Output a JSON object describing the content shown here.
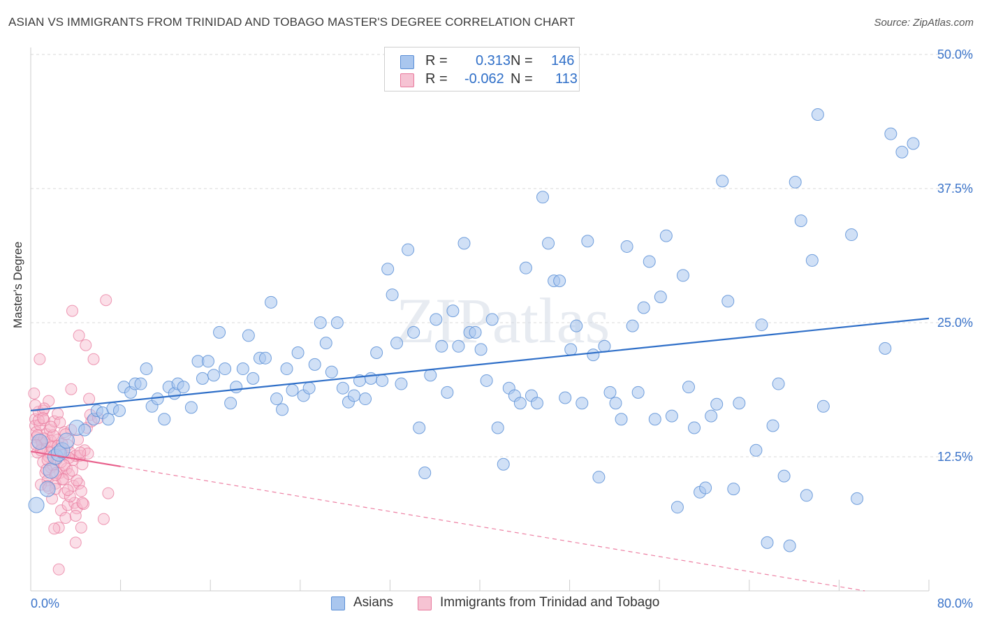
{
  "header": {
    "title": "ASIAN VS IMMIGRANTS FROM TRINIDAD AND TOBAGO MASTER'S DEGREE CORRELATION CHART",
    "source": "Source: ZipAtlas.com"
  },
  "watermark": "ZIPatlas",
  "legend": {
    "rows": [
      {
        "r_label": "R =",
        "r_value": "0.313",
        "n_label": "N =",
        "n_value": "146"
      },
      {
        "r_label": "R =",
        "r_value": "-0.062",
        "n_label": "N =",
        "n_value": "113"
      }
    ],
    "bottom": [
      {
        "label": "Asians"
      },
      {
        "label": "Immigrants from Trinidad and Tobago"
      }
    ]
  },
  "colors": {
    "asian_fill": "#a9c6ee",
    "asian_stroke": "#5b8fd6",
    "asian_line": "#2f6fc8",
    "tt_fill": "#f6b8cb",
    "tt_stroke": "#e8789c",
    "tt_line": "#e8608c",
    "grid": "#d9d9d9",
    "axis_text": "#3a73c9"
  },
  "chart_data": {
    "type": "scatter",
    "title": "ASIAN VS IMMIGRANTS FROM TRINIDAD AND TOBAGO MASTER'S DEGREE CORRELATION CHART",
    "xlabel": "",
    "ylabel": "Master's Degree",
    "xlim": [
      0,
      80
    ],
    "ylim": [
      0,
      50
    ],
    "x_tick_labels": [
      "0.0%",
      "80.0%"
    ],
    "y_tick_labels": [
      "12.5%",
      "25.0%",
      "37.5%",
      "50.0%"
    ],
    "y_ticks": [
      12.5,
      25.0,
      37.5,
      50.0
    ],
    "grid": true,
    "legend_position": "top-center",
    "series": [
      {
        "name": "Asians",
        "r": 0.313,
        "n": 146,
        "trend": {
          "x": [
            0,
            80
          ],
          "y": [
            16.8,
            25.4
          ]
        },
        "points": [
          [
            0.5,
            8.0
          ],
          [
            1.5,
            9.5
          ],
          [
            1.8,
            11.2
          ],
          [
            2.2,
            12.5
          ],
          [
            2.5,
            12.8
          ],
          [
            2.8,
            13.1
          ],
          [
            3.2,
            14.0
          ],
          [
            4.1,
            15.2
          ],
          [
            4.8,
            15.0
          ],
          [
            5.6,
            16.0
          ],
          [
            5.9,
            16.8
          ],
          [
            6.4,
            16.6
          ],
          [
            6.9,
            16.0
          ],
          [
            7.3,
            17.0
          ],
          [
            7.9,
            16.8
          ],
          [
            8.3,
            19.0
          ],
          [
            8.9,
            18.5
          ],
          [
            9.3,
            19.3
          ],
          [
            9.8,
            19.3
          ],
          [
            10.3,
            20.7
          ],
          [
            10.8,
            17.2
          ],
          [
            11.3,
            17.9
          ],
          [
            11.9,
            16.0
          ],
          [
            12.3,
            19.0
          ],
          [
            12.8,
            18.4
          ],
          [
            13.1,
            19.3
          ],
          [
            13.6,
            19.0
          ],
          [
            14.3,
            17.1
          ],
          [
            14.9,
            21.4
          ],
          [
            15.3,
            19.8
          ],
          [
            15.8,
            21.4
          ],
          [
            16.3,
            20.1
          ],
          [
            16.8,
            24.1
          ],
          [
            17.3,
            20.7
          ],
          [
            17.8,
            17.5
          ],
          [
            18.3,
            19.0
          ],
          [
            18.9,
            20.7
          ],
          [
            19.4,
            23.8
          ],
          [
            19.8,
            19.8
          ],
          [
            20.4,
            21.7
          ],
          [
            20.9,
            21.7
          ],
          [
            21.4,
            26.9
          ],
          [
            21.9,
            17.9
          ],
          [
            22.4,
            16.9
          ],
          [
            22.8,
            20.7
          ],
          [
            23.3,
            18.7
          ],
          [
            23.8,
            22.2
          ],
          [
            24.3,
            18.2
          ],
          [
            24.8,
            18.9
          ],
          [
            25.3,
            21.1
          ],
          [
            25.8,
            25.0
          ],
          [
            26.3,
            23.1
          ],
          [
            26.8,
            20.4
          ],
          [
            27.3,
            25.0
          ],
          [
            27.8,
            18.9
          ],
          [
            28.3,
            17.6
          ],
          [
            28.8,
            18.2
          ],
          [
            29.3,
            19.6
          ],
          [
            29.8,
            17.9
          ],
          [
            30.3,
            19.8
          ],
          [
            30.8,
            22.2
          ],
          [
            31.3,
            19.6
          ],
          [
            31.8,
            30.0
          ],
          [
            32.2,
            27.6
          ],
          [
            32.6,
            23.1
          ],
          [
            33.0,
            19.3
          ],
          [
            33.6,
            31.8
          ],
          [
            34.1,
            24.1
          ],
          [
            34.6,
            15.2
          ],
          [
            35.1,
            11.0
          ],
          [
            35.6,
            20.1
          ],
          [
            36.1,
            25.3
          ],
          [
            36.6,
            22.8
          ],
          [
            37.1,
            18.5
          ],
          [
            37.6,
            26.1
          ],
          [
            38.1,
            22.8
          ],
          [
            38.6,
            32.4
          ],
          [
            39.1,
            24.1
          ],
          [
            39.6,
            24.1
          ],
          [
            40.1,
            22.5
          ],
          [
            40.6,
            19.6
          ],
          [
            41.1,
            25.3
          ],
          [
            41.6,
            15.2
          ],
          [
            42.1,
            11.8
          ],
          [
            42.6,
            18.9
          ],
          [
            43.1,
            18.2
          ],
          [
            43.6,
            17.5
          ],
          [
            44.1,
            30.1
          ],
          [
            44.6,
            18.2
          ],
          [
            45.1,
            17.5
          ],
          [
            45.6,
            36.7
          ],
          [
            46.1,
            32.4
          ],
          [
            46.6,
            28.9
          ],
          [
            47.1,
            28.9
          ],
          [
            47.6,
            18.0
          ],
          [
            48.1,
            22.5
          ],
          [
            48.6,
            24.7
          ],
          [
            49.1,
            17.5
          ],
          [
            49.6,
            32.6
          ],
          [
            50.1,
            22.0
          ],
          [
            50.6,
            10.6
          ],
          [
            51.1,
            22.8
          ],
          [
            51.6,
            18.5
          ],
          [
            52.1,
            17.5
          ],
          [
            52.6,
            16.0
          ],
          [
            53.1,
            32.1
          ],
          [
            53.6,
            24.7
          ],
          [
            54.1,
            18.5
          ],
          [
            54.6,
            26.4
          ],
          [
            55.1,
            30.7
          ],
          [
            55.6,
            16.0
          ],
          [
            56.1,
            27.4
          ],
          [
            56.6,
            33.1
          ],
          [
            57.1,
            16.3
          ],
          [
            57.6,
            7.8
          ],
          [
            58.1,
            29.4
          ],
          [
            58.6,
            19.0
          ],
          [
            59.1,
            15.2
          ],
          [
            59.6,
            9.2
          ],
          [
            60.1,
            9.6
          ],
          [
            60.6,
            16.3
          ],
          [
            61.1,
            17.4
          ],
          [
            61.6,
            38.2
          ],
          [
            62.1,
            27.0
          ],
          [
            62.6,
            9.5
          ],
          [
            63.1,
            17.5
          ],
          [
            64.6,
            13.1
          ],
          [
            65.1,
            24.8
          ],
          [
            65.6,
            4.5
          ],
          [
            66.1,
            15.4
          ],
          [
            66.6,
            19.3
          ],
          [
            67.1,
            10.7
          ],
          [
            67.6,
            4.2
          ],
          [
            68.1,
            38.1
          ],
          [
            68.6,
            34.5
          ],
          [
            69.1,
            8.9
          ],
          [
            69.6,
            30.8
          ],
          [
            70.1,
            44.4
          ],
          [
            70.6,
            17.2
          ],
          [
            73.1,
            33.2
          ],
          [
            73.6,
            8.6
          ],
          [
            76.1,
            22.6
          ],
          [
            76.6,
            42.6
          ],
          [
            77.6,
            40.9
          ],
          [
            78.6,
            41.7
          ],
          [
            0.8,
            13.9
          ]
        ]
      },
      {
        "name": "Immigrants from Trinidad and Tobago",
        "r": -0.062,
        "n": 113,
        "trend": {
          "x": [
            0,
            8
          ],
          "y": [
            13.0,
            11.6
          ]
        },
        "trend_ext": {
          "x": [
            8,
            80
          ],
          "y": [
            11.6,
            -1.0
          ]
        },
        "points": [
          [
            0.3,
            18.4
          ],
          [
            0.4,
            16.0
          ],
          [
            0.4,
            15.4
          ],
          [
            0.5,
            14.8
          ],
          [
            0.5,
            14.3
          ],
          [
            0.6,
            13.8
          ],
          [
            0.6,
            12.9
          ],
          [
            0.7,
            16.7
          ],
          [
            0.8,
            15.5
          ],
          [
            0.8,
            21.6
          ],
          [
            0.9,
            14.1
          ],
          [
            1.0,
            13.3
          ],
          [
            1.1,
            12.0
          ],
          [
            1.1,
            16.8
          ],
          [
            1.2,
            15.9
          ],
          [
            1.3,
            11.0
          ],
          [
            1.3,
            13.9
          ],
          [
            1.4,
            14.6
          ],
          [
            1.5,
            10.3
          ],
          [
            1.5,
            9.8
          ],
          [
            1.6,
            17.7
          ],
          [
            1.6,
            12.5
          ],
          [
            1.7,
            15.0
          ],
          [
            1.8,
            11.5
          ],
          [
            1.8,
            14.0
          ],
          [
            1.9,
            8.6
          ],
          [
            2.0,
            11.7
          ],
          [
            2.0,
            13.0
          ],
          [
            2.1,
            15.8
          ],
          [
            2.2,
            10.0
          ],
          [
            2.2,
            9.5
          ],
          [
            2.3,
            12.2
          ],
          [
            2.4,
            14.1
          ],
          [
            2.4,
            16.5
          ],
          [
            2.5,
            5.9
          ],
          [
            2.6,
            11.0
          ],
          [
            2.7,
            13.2
          ],
          [
            2.7,
            7.5
          ],
          [
            2.8,
            10.4
          ],
          [
            2.9,
            12.7
          ],
          [
            3.0,
            9.1
          ],
          [
            3.0,
            14.8
          ],
          [
            3.1,
            6.8
          ],
          [
            3.2,
            11.4
          ],
          [
            3.3,
            13.6
          ],
          [
            3.3,
            8.0
          ],
          [
            3.4,
            10.9
          ],
          [
            3.5,
            12.9
          ],
          [
            3.6,
            15.0
          ],
          [
            3.6,
            18.8
          ],
          [
            3.7,
            26.1
          ],
          [
            3.8,
            9.8
          ],
          [
            3.8,
            12.2
          ],
          [
            3.9,
            8.2
          ],
          [
            4.0,
            4.5
          ],
          [
            4.0,
            12.6
          ],
          [
            4.1,
            7.7
          ],
          [
            4.2,
            14.1
          ],
          [
            4.3,
            23.8
          ],
          [
            4.3,
            10.0
          ],
          [
            4.4,
            12.6
          ],
          [
            4.5,
            9.3
          ],
          [
            4.5,
            5.9
          ],
          [
            4.6,
            11.8
          ],
          [
            4.7,
            8.1
          ],
          [
            4.8,
            13.1
          ],
          [
            4.9,
            22.9
          ],
          [
            5.0,
            15.2
          ],
          [
            5.1,
            12.8
          ],
          [
            5.2,
            17.9
          ],
          [
            5.3,
            16.4
          ],
          [
            5.4,
            15.8
          ],
          [
            5.6,
            21.6
          ],
          [
            6.0,
            16.1
          ],
          [
            6.5,
            6.7
          ],
          [
            6.7,
            27.1
          ],
          [
            6.9,
            9.1
          ],
          [
            1.2,
            17.0
          ],
          [
            2.1,
            5.8
          ],
          [
            2.5,
            2.0
          ],
          [
            0.9,
            9.9
          ],
          [
            1.4,
            11.3
          ],
          [
            3.1,
            14.6
          ],
          [
            2.6,
            15.7
          ],
          [
            1.9,
            13.4
          ],
          [
            0.7,
            15.9
          ],
          [
            1.0,
            13.8
          ],
          [
            1.2,
            14.2
          ],
          [
            1.7,
            12.9
          ],
          [
            2.3,
            11.0
          ],
          [
            2.9,
            10.4
          ],
          [
            3.5,
            8.8
          ],
          [
            4.1,
            10.3
          ],
          [
            0.6,
            14.5
          ],
          [
            1.5,
            12.2
          ],
          [
            2.0,
            14.5
          ],
          [
            2.7,
            12.0
          ],
          [
            3.4,
            12.4
          ],
          [
            0.4,
            17.3
          ],
          [
            1.1,
            16.1
          ],
          [
            1.8,
            15.3
          ],
          [
            2.4,
            13.5
          ],
          [
            3.0,
            11.7
          ],
          [
            3.7,
            11.2
          ],
          [
            4.4,
            12.9
          ],
          [
            0.9,
            13.1
          ],
          [
            1.6,
            9.6
          ],
          [
            2.2,
            10.8
          ],
          [
            2.8,
            13.7
          ],
          [
            3.3,
            9.4
          ],
          [
            4.0,
            7.0
          ],
          [
            4.6,
            8.2
          ],
          [
            0.5,
            13.6
          ]
        ]
      }
    ]
  }
}
